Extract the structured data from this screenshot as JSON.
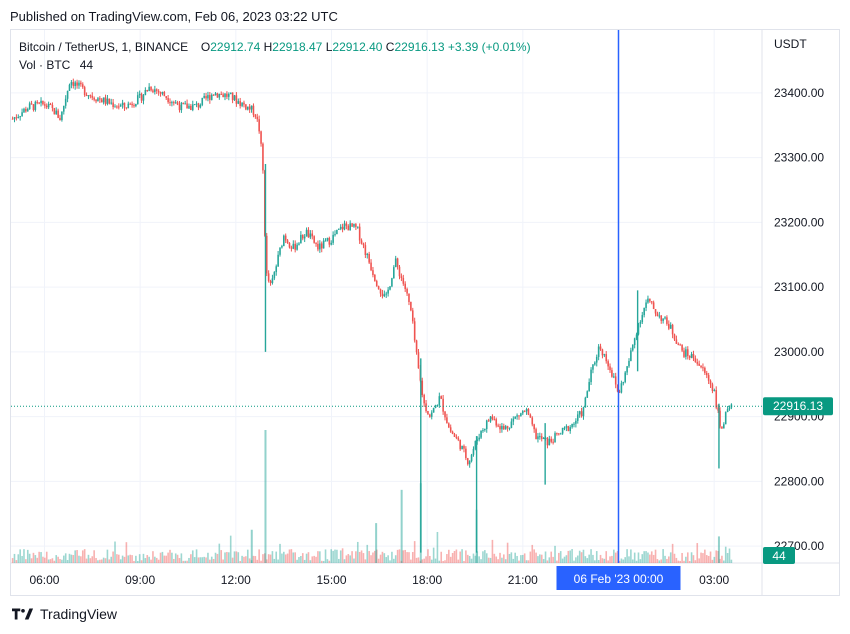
{
  "header": {
    "published": "Published on TradingView.com, Feb 06, 2023 03:22 UTC"
  },
  "legend": {
    "symbol": "Bitcoin / TetherUS, 1, BINANCE",
    "o_label": "O",
    "o": "22912.74",
    "h_label": "H",
    "h": "22918.47",
    "l_label": "L",
    "l": "22912.40",
    "c_label": "C",
    "c": "22916.13",
    "change": "+3.39 (+0.01%)",
    "vol_label": "Vol · BTC",
    "vol_value": "44"
  },
  "footer": {
    "brand": "TradingView"
  },
  "colors": {
    "up": "#26a69a",
    "down": "#ef5350",
    "crosshair": "#2962ff",
    "price_line": "#089981"
  },
  "chart_data": {
    "type": "candlestick",
    "currency": "USDT",
    "y_ticks": [
      23400,
      23300,
      23200,
      23100,
      23000,
      22900,
      22800,
      22700
    ],
    "y_tick_labels": [
      "23400.00",
      "23300.00",
      "23200.00",
      "23100.00",
      "23000.00",
      "22900.00",
      "22800.00",
      "22700.00"
    ],
    "ylim": [
      22674,
      23497
    ],
    "x_ticks": [
      "06:00",
      "09:00",
      "12:00",
      "15:00",
      "18:00",
      "21:00",
      "00:00",
      "03:00"
    ],
    "x_tick_hours": [
      6,
      9,
      12,
      15,
      18,
      21,
      24,
      27
    ],
    "xlim_hours": [
      4.95,
      28.5
    ],
    "crosshair_hour": 24,
    "crosshair_label": "06 Feb '23   00:00",
    "last_price": 22916.13,
    "last_price_label": "22916.13",
    "last_volume_label": "44",
    "price_path": [
      [
        5.0,
        23360
      ],
      [
        5.5,
        23378
      ],
      [
        6.0,
        23382
      ],
      [
        6.3,
        23372
      ],
      [
        6.5,
        23360
      ],
      [
        6.8,
        23420
      ],
      [
        7.1,
        23408
      ],
      [
        7.5,
        23395
      ],
      [
        8.0,
        23385
      ],
      [
        8.5,
        23378
      ],
      [
        9.0,
        23392
      ],
      [
        9.3,
        23410
      ],
      [
        9.8,
        23395
      ],
      [
        10.3,
        23378
      ],
      [
        10.8,
        23380
      ],
      [
        11.3,
        23400
      ],
      [
        11.8,
        23395
      ],
      [
        12.3,
        23380
      ],
      [
        12.6,
        23370
      ],
      [
        12.75,
        23340
      ],
      [
        12.85,
        23280
      ],
      [
        12.95,
        23120
      ],
      [
        13.1,
        23100
      ],
      [
        13.3,
        23140
      ],
      [
        13.5,
        23180
      ],
      [
        13.8,
        23160
      ],
      [
        14.2,
        23185
      ],
      [
        14.6,
        23160
      ],
      [
        15.0,
        23175
      ],
      [
        15.4,
        23195
      ],
      [
        15.8,
        23190
      ],
      [
        16.1,
        23150
      ],
      [
        16.4,
        23110
      ],
      [
        16.7,
        23080
      ],
      [
        17.0,
        23140
      ],
      [
        17.3,
        23100
      ],
      [
        17.5,
        23060
      ],
      [
        17.7,
        22980
      ],
      [
        17.9,
        22920
      ],
      [
        18.1,
        22900
      ],
      [
        18.4,
        22930
      ],
      [
        18.7,
        22880
      ],
      [
        19.0,
        22860
      ],
      [
        19.3,
        22830
      ],
      [
        19.6,
        22870
      ],
      [
        20.0,
        22900
      ],
      [
        20.4,
        22880
      ],
      [
        20.8,
        22900
      ],
      [
        21.1,
        22910
      ],
      [
        21.4,
        22870
      ],
      [
        21.8,
        22860
      ],
      [
        22.2,
        22875
      ],
      [
        22.6,
        22890
      ],
      [
        22.9,
        22910
      ],
      [
        23.1,
        22960
      ],
      [
        23.4,
        23010
      ],
      [
        23.7,
        22980
      ],
      [
        24.0,
        22935
      ],
      [
        24.3,
        22980
      ],
      [
        24.6,
        23040
      ],
      [
        24.9,
        23080
      ],
      [
        25.2,
        23060
      ],
      [
        25.6,
        23040
      ],
      [
        26.0,
        23000
      ],
      [
        26.4,
        22990
      ],
      [
        26.8,
        22960
      ],
      [
        27.0,
        22940
      ],
      [
        27.2,
        22880
      ],
      [
        27.4,
        22905
      ],
      [
        27.6,
        22916
      ]
    ],
    "spikes": [
      {
        "hour": 12.93,
        "low": 23000,
        "high": 23290
      },
      {
        "hour": 17.8,
        "low": 22690,
        "high": 22990
      },
      {
        "hour": 19.55,
        "low": 22690,
        "high": 22870
      },
      {
        "hour": 21.7,
        "low": 22795,
        "high": 22890
      },
      {
        "hour": 24.6,
        "low": 22970,
        "high": 23095
      },
      {
        "hour": 27.15,
        "low": 22820,
        "high": 22920
      }
    ],
    "volume_spikes": [
      {
        "hour": 12.93,
        "value": 1.0
      },
      {
        "hour": 17.2,
        "value": 0.55
      },
      {
        "hour": 17.8,
        "value": 0.6
      },
      {
        "hour": 19.55,
        "value": 0.4
      },
      {
        "hour": 12.5,
        "value": 0.25
      },
      {
        "hour": 16.4,
        "value": 0.3
      },
      {
        "hour": 27.15,
        "value": 0.2
      }
    ]
  }
}
